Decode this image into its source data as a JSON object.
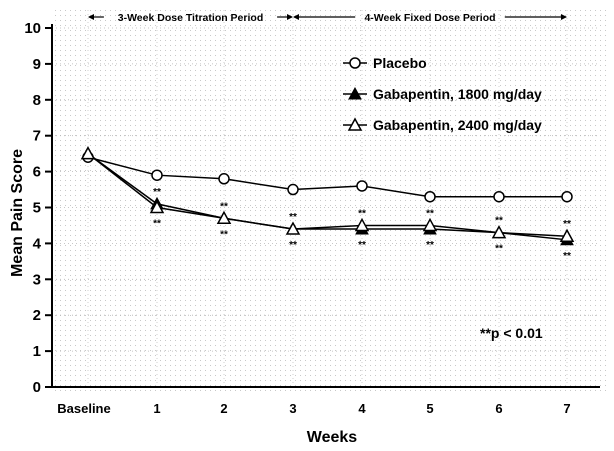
{
  "chart_data": {
    "type": "line",
    "ylabel": "Mean Pain Score",
    "xlabel": "Weeks",
    "ylim": [
      0,
      10
    ],
    "yticks": [
      "0",
      "1",
      "2",
      "3",
      "4",
      "5",
      "6",
      "7",
      "8",
      "9",
      "10"
    ],
    "categories": [
      "Baseline",
      "1",
      "2",
      "3",
      "4",
      "5",
      "6",
      "7"
    ],
    "periods": [
      {
        "label": "3-Week Dose Titration Period",
        "from": "Baseline",
        "to": "3"
      },
      {
        "label": "4-Week Fixed Dose Period",
        "from": "3",
        "to": "7"
      }
    ],
    "series": [
      {
        "name": "Placebo",
        "marker": "open-circle",
        "values": [
          6.4,
          5.9,
          5.8,
          5.5,
          5.6,
          5.3,
          5.3,
          5.3
        ]
      },
      {
        "name": "Gabapentin, 1800 mg/day",
        "marker": "filled-triangle",
        "values": [
          6.5,
          5.1,
          4.7,
          4.4,
          4.4,
          4.4,
          4.3,
          4.1
        ]
      },
      {
        "name": "Gabapentin, 2400 mg/day",
        "marker": "open-triangle",
        "values": [
          6.5,
          5.0,
          4.7,
          4.4,
          4.5,
          4.5,
          4.3,
          4.2
        ]
      }
    ],
    "significance": {
      "marker": "**",
      "label": "**p < 0.01",
      "above": [
        "1",
        "2",
        "3",
        "4",
        "5",
        "6",
        "7"
      ],
      "below": [
        "1",
        "2",
        "3",
        "4",
        "5",
        "6",
        "7"
      ]
    },
    "grid": true,
    "legend_position": "top-right"
  }
}
